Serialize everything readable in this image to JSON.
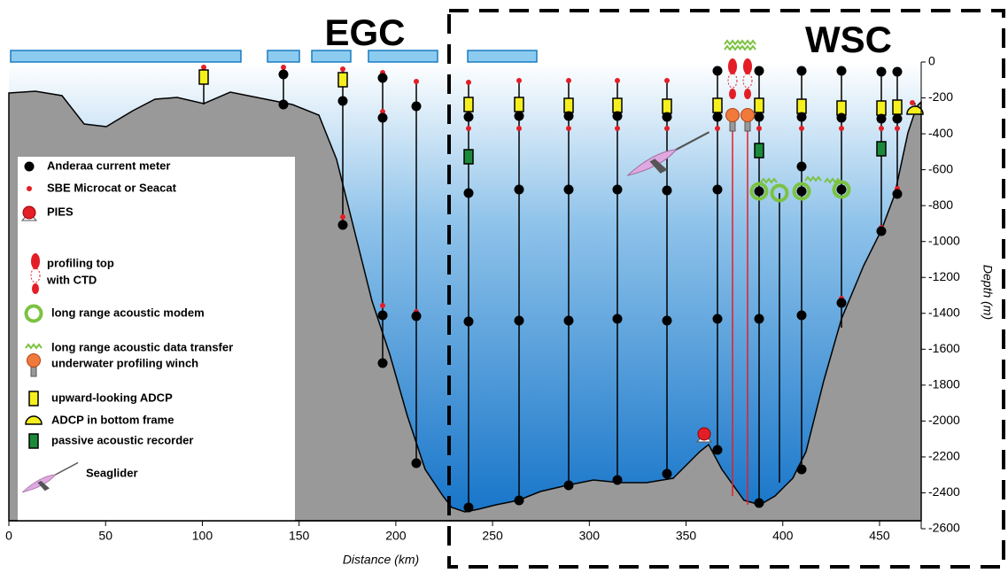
{
  "regions": {
    "left": "EGC",
    "right": "WSC"
  },
  "x_axis": {
    "title": "Distance (km)",
    "ticks": [
      0,
      50,
      100,
      150,
      200,
      250,
      300,
      350,
      400,
      450
    ]
  },
  "y_axis": {
    "title": "Depth (m)",
    "ticks": [
      0,
      -200,
      -400,
      -600,
      -800,
      -1000,
      -1200,
      -1400,
      -1600,
      -1800,
      -2000,
      -2200,
      -2400,
      -2600
    ]
  },
  "legend": {
    "items": [
      {
        "lines": [
          "Anderaa current meter"
        ]
      },
      {
        "lines": [
          "SBE Microcat or Seacat"
        ]
      },
      {
        "lines": [
          "PIES"
        ]
      },
      {
        "lines": [
          "profiling top",
          "with CTD"
        ]
      },
      {
        "lines": [
          "long range acoustic modem"
        ]
      },
      {
        "lines": [
          "long range acoustic data transfer"
        ]
      },
      {
        "lines": [
          "underwater profiling winch"
        ]
      },
      {
        "lines": [
          "upward-looking ADCP"
        ]
      },
      {
        "lines": [
          "ADCP in bottom frame"
        ]
      },
      {
        "lines": [
          "passive acoustic recorder"
        ]
      },
      {
        "lines": [
          "Seaglider"
        ]
      }
    ]
  }
}
